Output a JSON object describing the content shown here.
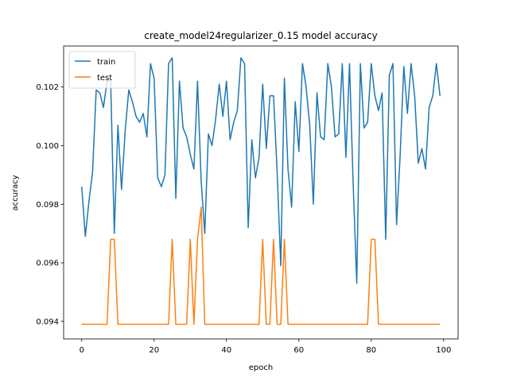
{
  "chart_data": {
    "type": "line",
    "title": "create_model24regularizer_0.15 model accuracy",
    "xlabel": "epoch",
    "ylabel": "accuracy",
    "xlim": [
      -5,
      104
    ],
    "ylim": [
      0.0934,
      0.1034
    ],
    "xticks": [
      0,
      20,
      40,
      60,
      80,
      100
    ],
    "yticks": [
      0.094,
      0.096,
      0.098,
      0.1,
      0.102
    ],
    "ytick_labels": [
      "0.094",
      "0.096",
      "0.098",
      "0.100",
      "0.102"
    ],
    "grid": false,
    "legend_position": "upper-left",
    "series": [
      {
        "name": "train",
        "color": "#1f77b4",
        "x": [
          0,
          1,
          2,
          3,
          4,
          5,
          6,
          7,
          8,
          9,
          10,
          11,
          12,
          13,
          14,
          15,
          16,
          17,
          18,
          19,
          20,
          21,
          22,
          23,
          24,
          25,
          26,
          27,
          28,
          29,
          30,
          31,
          32,
          33,
          34,
          35,
          36,
          37,
          38,
          39,
          40,
          41,
          42,
          43,
          44,
          45,
          46,
          47,
          48,
          49,
          50,
          51,
          52,
          53,
          54,
          55,
          56,
          57,
          58,
          59,
          60,
          61,
          62,
          63,
          64,
          65,
          66,
          67,
          68,
          69,
          70,
          71,
          72,
          73,
          74,
          75,
          76,
          77,
          78,
          79,
          80,
          81,
          82,
          83,
          84,
          85,
          86,
          87,
          88,
          89,
          90,
          91,
          92,
          93,
          94,
          95,
          96,
          97,
          98,
          99
        ],
        "values": [
          0.0986,
          0.0969,
          0.0981,
          0.0991,
          0.1019,
          0.1018,
          0.1013,
          0.1022,
          0.1022,
          0.097,
          0.1007,
          0.0985,
          0.1005,
          0.1019,
          0.1015,
          0.101,
          0.1008,
          0.1011,
          0.1003,
          0.1028,
          0.1023,
          0.0989,
          0.0986,
          0.099,
          0.1028,
          0.103,
          0.0982,
          0.1022,
          0.1006,
          0.1003,
          0.0997,
          0.0992,
          0.1022,
          0.0988,
          0.097,
          0.1004,
          0.1,
          0.1009,
          0.1021,
          0.101,
          0.1022,
          0.1002,
          0.1008,
          0.1012,
          0.103,
          0.1028,
          0.0972,
          0.1002,
          0.0989,
          0.0996,
          0.1021,
          0.0999,
          0.1017,
          0.1017,
          0.0991,
          0.0959,
          0.1023,
          0.0992,
          0.0979,
          0.1015,
          0.0998,
          0.1028,
          0.102,
          0.1007,
          0.098,
          0.1018,
          0.1003,
          0.1002,
          0.1028,
          0.102,
          0.1003,
          0.1004,
          0.1028,
          0.0996,
          0.1028,
          0.0987,
          0.0953,
          0.1028,
          0.1006,
          0.1008,
          0.1028,
          0.1017,
          0.1012,
          0.1018,
          0.0968,
          0.1024,
          0.1028,
          0.0973,
          0.0997,
          0.1027,
          0.1011,
          0.1028,
          0.1017,
          0.0994,
          0.0999,
          0.0992,
          0.1013,
          0.1017,
          0.1028,
          0.1017
        ]
      },
      {
        "name": "test",
        "color": "#ff7f0e",
        "x": [
          0,
          1,
          2,
          3,
          4,
          5,
          6,
          7,
          8,
          9,
          10,
          11,
          12,
          13,
          14,
          15,
          16,
          17,
          18,
          19,
          20,
          21,
          22,
          23,
          24,
          25,
          26,
          27,
          28,
          29,
          30,
          31,
          32,
          33,
          34,
          35,
          36,
          37,
          38,
          39,
          40,
          41,
          42,
          43,
          44,
          45,
          46,
          47,
          48,
          49,
          50,
          51,
          52,
          53,
          54,
          55,
          56,
          57,
          58,
          59,
          60,
          61,
          62,
          63,
          64,
          65,
          66,
          67,
          68,
          69,
          70,
          71,
          72,
          73,
          74,
          75,
          76,
          77,
          78,
          79,
          80,
          81,
          82,
          83,
          84,
          85,
          86,
          87,
          88,
          89,
          90,
          91,
          92,
          93,
          94,
          95,
          96,
          97,
          98,
          99
        ],
        "values": [
          0.0939,
          0.0939,
          0.0939,
          0.0939,
          0.0939,
          0.0939,
          0.0939,
          0.0939,
          0.0968,
          0.0968,
          0.0939,
          0.0939,
          0.0939,
          0.0939,
          0.0939,
          0.0939,
          0.0939,
          0.0939,
          0.0939,
          0.0939,
          0.0939,
          0.0939,
          0.0939,
          0.0939,
          0.0939,
          0.0968,
          0.0939,
          0.0939,
          0.0939,
          0.0939,
          0.0968,
          0.0939,
          0.0968,
          0.0979,
          0.0939,
          0.0939,
          0.0939,
          0.0939,
          0.0939,
          0.0939,
          0.0939,
          0.0939,
          0.0939,
          0.0939,
          0.0939,
          0.0939,
          0.0939,
          0.0939,
          0.0939,
          0.0939,
          0.0968,
          0.0939,
          0.0939,
          0.0968,
          0.0939,
          0.0939,
          0.0968,
          0.0939,
          0.0939,
          0.0939,
          0.0939,
          0.0939,
          0.0939,
          0.0939,
          0.0939,
          0.0939,
          0.0939,
          0.0939,
          0.0939,
          0.0939,
          0.0939,
          0.0939,
          0.0939,
          0.0939,
          0.0939,
          0.0939,
          0.0939,
          0.0939,
          0.0939,
          0.0939,
          0.0968,
          0.0968,
          0.0939,
          0.0939,
          0.0939,
          0.0939,
          0.0939,
          0.0939,
          0.0939,
          0.0939,
          0.0939,
          0.0939,
          0.0939,
          0.0939,
          0.0939,
          0.0939,
          0.0939,
          0.0939,
          0.0939,
          0.0939
        ]
      }
    ]
  }
}
